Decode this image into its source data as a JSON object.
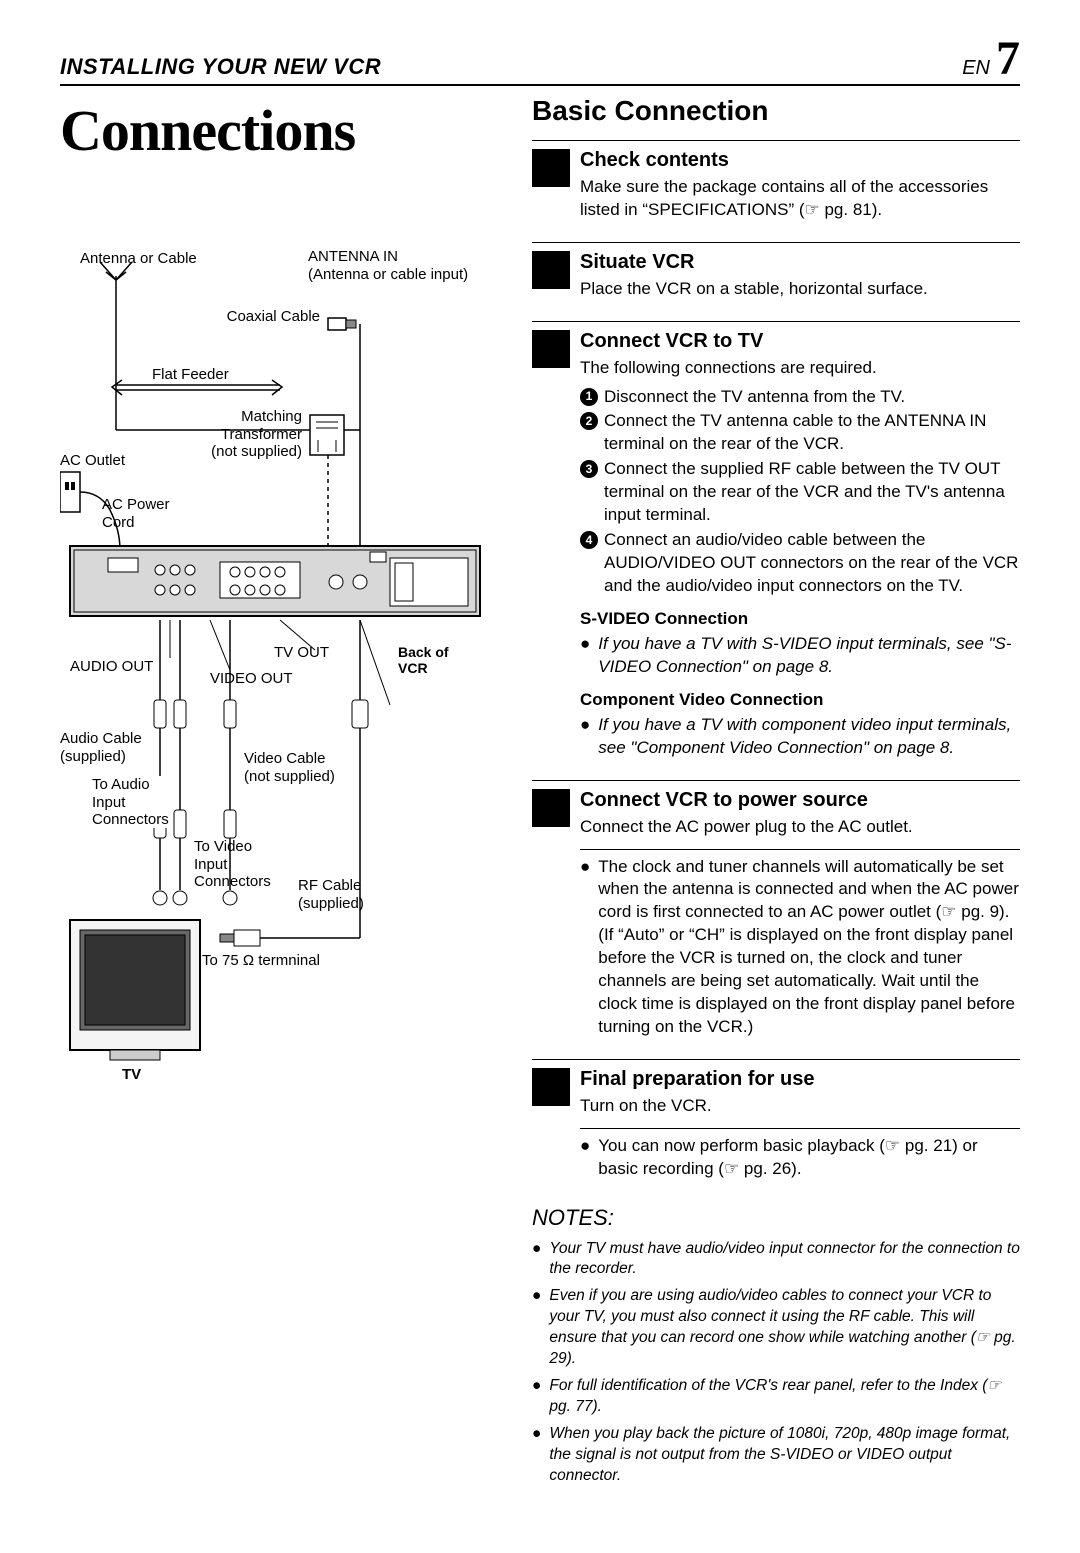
{
  "header": {
    "chapter": "INSTALLING YOUR NEW VCR",
    "lang": "EN",
    "page": "7"
  },
  "left": {
    "main_heading": "Connections",
    "diagram": {
      "antenna_or_cable": "Antenna or Cable",
      "antenna_in": "ANTENNA IN",
      "antenna_in_sub": "(Antenna or cable input)",
      "coaxial_cable": "Coaxial Cable",
      "flat_feeder": "Flat Feeder",
      "matching_transformer": "Matching\nTransformer\n(not supplied)",
      "ac_outlet": "AC Outlet",
      "ac_power_cord": "AC Power\nCord",
      "tv_out": "TV OUT",
      "audio_out": "AUDIO OUT",
      "video_out": "VIDEO OUT",
      "back_of_vcr": "Back of\nVCR",
      "audio_cable": "Audio Cable\n(supplied)",
      "video_cable": "Video Cable\n(not supplied)",
      "to_audio_input": "To Audio\nInput\nConnectors",
      "to_video_input": "To Video\nInput\nConnectors",
      "rf_cable": "RF Cable\n(supplied)",
      "to_75_ohm": "To 75 Ω termninal",
      "tv": "TV"
    }
  },
  "right": {
    "section_heading": "Basic Connection",
    "steps": [
      {
        "title": "Check contents",
        "text": "Make sure the package contains all of the accessories listed in “SPECIFICATIONS” (☞ pg. 81)."
      },
      {
        "title": "Situate VCR",
        "text": "Place the VCR on a stable, horizontal surface."
      },
      {
        "title": "Connect VCR to TV",
        "text": "The following connections are required.",
        "numbered": [
          "Disconnect the TV antenna from the TV.",
          "Connect the TV antenna cable to the ANTENNA IN terminal on the rear of the VCR.",
          "Connect the supplied RF cable between the TV OUT terminal on the rear of the VCR and the TV's antenna input terminal.",
          "Connect an audio/video cable between the AUDIO/VIDEO OUT connectors on the rear of the VCR and the audio/video input connectors on the TV."
        ],
        "sub": [
          {
            "bold": "S-VIDEO Connection",
            "italic": "If you have a TV with S-VIDEO input terminals, see \"S-VIDEO Connection\" on page 8."
          },
          {
            "bold": "Component Video Connection",
            "italic": "If you have a TV with component video input terminals, see \"Component Video Connection\" on page 8."
          }
        ]
      },
      {
        "title": "Connect VCR to power source",
        "text": "Connect the AC power plug to the AC outlet.",
        "after_bullet": "The clock and tuner channels will automatically be set when the antenna is connected and when the AC power cord is first connected to an AC power outlet (☞ pg. 9). (If “Auto” or “CH” is displayed on the front display panel before the VCR is turned on, the clock and tuner channels are being set automatically. Wait until the clock time is displayed on the front display panel before turning on the VCR.)"
      },
      {
        "title": "Final preparation for use",
        "text": "Turn on the VCR.",
        "after_bullet": "You can now perform basic playback (☞ pg. 21) or basic recording (☞ pg. 26)."
      }
    ],
    "notes_heading": "NOTES:",
    "notes": [
      "Your TV must have audio/video input connector for the connection to the recorder.",
      "Even if you are using audio/video cables to connect your VCR to your TV, you must also connect it using the RF cable. This will ensure that you can record one show while watching another (☞ pg. 29).",
      "For full identification of the VCR's rear panel, refer to the Index (☞ pg. 77).",
      "When you play back the picture of 1080i, 720p, 480p image format, the signal is not output from the S-VIDEO or VIDEO output connector."
    ]
  }
}
